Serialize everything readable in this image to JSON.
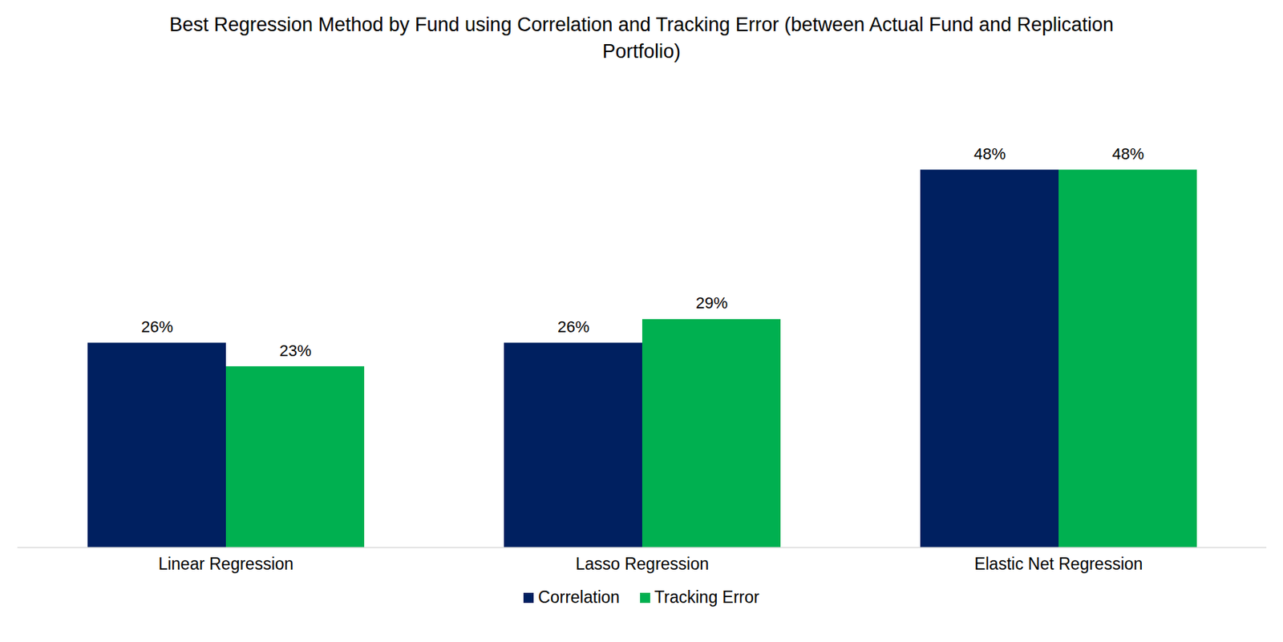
{
  "chart_data": {
    "type": "bar",
    "title": "Best Regression Method by Fund using Correlation and Tracking Error (between Actual Fund and Replication Portfolio)",
    "categories": [
      "Linear Regression",
      "Lasso Regression",
      "Elastic Net Regression"
    ],
    "series": [
      {
        "name": "Correlation",
        "color": "#002060",
        "values": [
          26,
          26,
          48
        ],
        "value_labels": [
          "26%",
          "26%",
          "48%"
        ]
      },
      {
        "name": "Tracking Error",
        "color": "#00B050",
        "values": [
          23,
          29,
          48
        ],
        "value_labels": [
          "23%",
          "29%",
          "48%"
        ]
      }
    ],
    "ylim": [
      0,
      60
    ],
    "data_labels": true,
    "tick_labels": "x",
    "legend": "bottom",
    "grid": false
  }
}
